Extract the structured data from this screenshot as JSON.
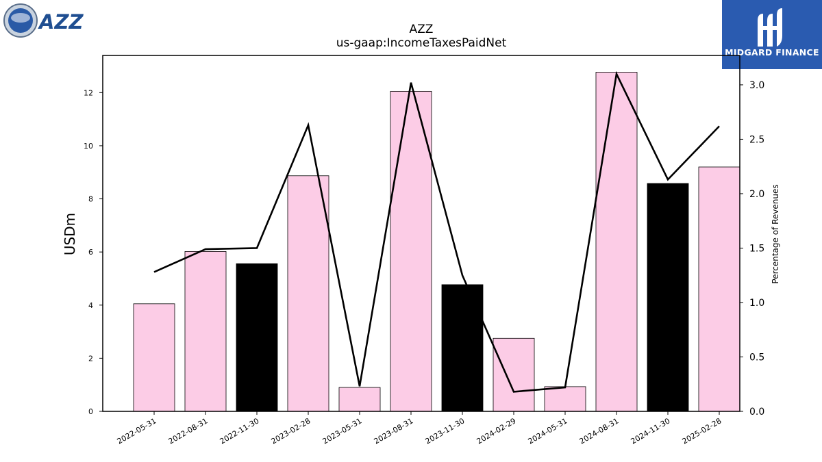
{
  "company_logo": {
    "text": "AZZ",
    "color": "#1f4e91"
  },
  "brand_logo": {
    "text": "MIDGARD FINANCE",
    "background": "#2a5bb0"
  },
  "chart_data": {
    "type": "bar",
    "title": "AZZ",
    "subtitle": "us-gaap:IncomeTaxesPaidNet",
    "ylabel": "USDm",
    "ylabel_right": "Percentage of Revenues",
    "categories": [
      "2022-05-31",
      "2022-08-31",
      "2022-11-30",
      "2023-02-28",
      "2023-05-31",
      "2023-08-31",
      "2023-11-30",
      "2024-02-29",
      "2024-05-31",
      "2024-08-31",
      "2024-11-30",
      "2025-02-28"
    ],
    "series": [
      {
        "type": "bar",
        "values": [
          4.05,
          6.02,
          5.56,
          8.87,
          0.9,
          12.05,
          4.77,
          2.75,
          0.93,
          12.77,
          8.58,
          9.2
        ],
        "colors": [
          "#fccce6",
          "#fccce6",
          "#000000",
          "#fccce6",
          "#fccce6",
          "#fccce6",
          "#000000",
          "#fccce6",
          "#fccce6",
          "#fccce6",
          "#000000",
          "#fccce6"
        ]
      },
      {
        "type": "line",
        "axis": "right",
        "values": [
          1.28,
          1.49,
          1.5,
          2.63,
          0.23,
          3.02,
          1.25,
          0.18,
          0.22,
          3.1,
          2.13,
          2.62
        ],
        "color": "#000000"
      }
    ],
    "ylim": [
      0,
      13.4
    ],
    "yticks": [
      0,
      2,
      4,
      6,
      8,
      10,
      12
    ],
    "ylim_right": [
      0,
      3.27
    ],
    "yticks_right": [
      "0.0",
      "0.5",
      "1.0",
      "1.5",
      "2.0",
      "2.5",
      "3.0"
    ],
    "grid": false,
    "legend": "none"
  }
}
